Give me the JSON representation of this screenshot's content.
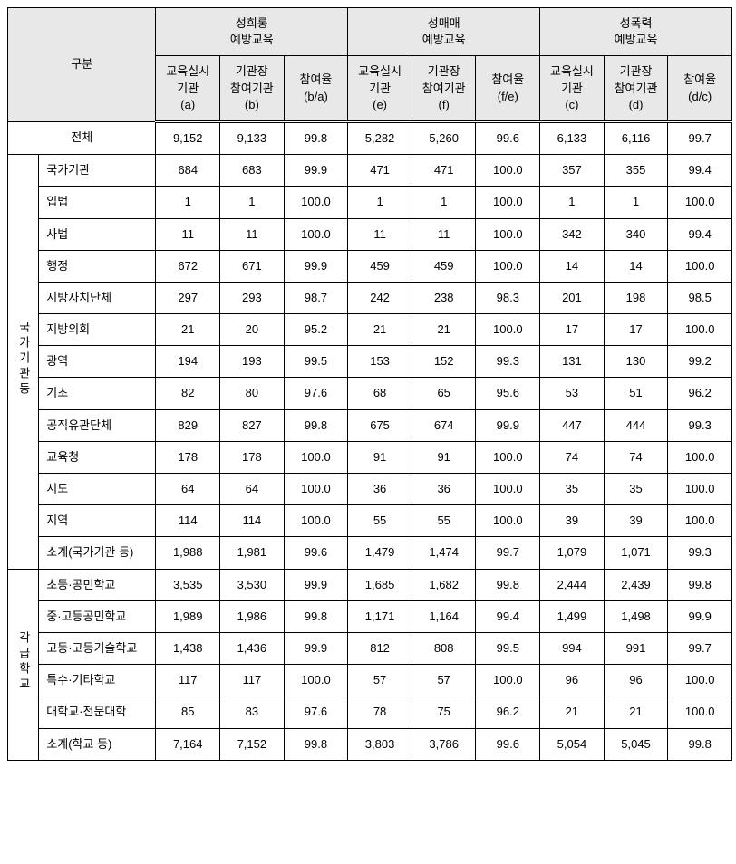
{
  "headers": {
    "category": "구분",
    "groups": [
      {
        "title": "성희롱\n예방교육",
        "cols": [
          {
            "label": "교육실시\n기관\n(a)"
          },
          {
            "label": "기관장\n참여기관\n(b)"
          },
          {
            "label": "참여율\n(b/a)"
          }
        ]
      },
      {
        "title": "성매매\n예방교육",
        "cols": [
          {
            "label": "교육실시\n기관\n(e)"
          },
          {
            "label": "기관장\n참여기관\n(f)"
          },
          {
            "label": "참여율\n(f/e)"
          }
        ]
      },
      {
        "title": "성폭력\n예방교육",
        "cols": [
          {
            "label": "교육실시\n기관\n(c)"
          },
          {
            "label": "기관장\n참여기관\n(d)"
          },
          {
            "label": "참여율\n(d/c)"
          }
        ]
      }
    ]
  },
  "total": {
    "label": "전체",
    "v": [
      "9,152",
      "9,133",
      "99.8",
      "5,282",
      "5,260",
      "99.6",
      "6,133",
      "6,116",
      "99.7"
    ]
  },
  "section1": {
    "label": "국\n가\n기\n관\n등",
    "rows": [
      {
        "label": "국가기관",
        "v": [
          "684",
          "683",
          "99.9",
          "471",
          "471",
          "100.0",
          "357",
          "355",
          "99.4"
        ]
      },
      {
        "label": "입법",
        "v": [
          "1",
          "1",
          "100.0",
          "1",
          "1",
          "100.0",
          "1",
          "1",
          "100.0"
        ]
      },
      {
        "label": "사법",
        "v": [
          "11",
          "11",
          "100.0",
          "11",
          "11",
          "100.0",
          "342",
          "340",
          "99.4"
        ]
      },
      {
        "label": "행정",
        "v": [
          "672",
          "671",
          "99.9",
          "459",
          "459",
          "100.0",
          "14",
          "14",
          "100.0"
        ]
      },
      {
        "label": "지방자치단체",
        "v": [
          "297",
          "293",
          "98.7",
          "242",
          "238",
          "98.3",
          "201",
          "198",
          "98.5"
        ]
      },
      {
        "label": "지방의회",
        "v": [
          "21",
          "20",
          "95.2",
          "21",
          "21",
          "100.0",
          "17",
          "17",
          "100.0"
        ]
      },
      {
        "label": "광역",
        "v": [
          "194",
          "193",
          "99.5",
          "153",
          "152",
          "99.3",
          "131",
          "130",
          "99.2"
        ]
      },
      {
        "label": "기초",
        "v": [
          "82",
          "80",
          "97.6",
          "68",
          "65",
          "95.6",
          "53",
          "51",
          "96.2"
        ]
      },
      {
        "label": "공직유관단체",
        "v": [
          "829",
          "827",
          "99.8",
          "675",
          "674",
          "99.9",
          "447",
          "444",
          "99.3"
        ]
      },
      {
        "label": "교육청",
        "v": [
          "178",
          "178",
          "100.0",
          "91",
          "91",
          "100.0",
          "74",
          "74",
          "100.0"
        ]
      },
      {
        "label": "시도",
        "v": [
          "64",
          "64",
          "100.0",
          "36",
          "36",
          "100.0",
          "35",
          "35",
          "100.0"
        ]
      },
      {
        "label": "지역",
        "v": [
          "114",
          "114",
          "100.0",
          "55",
          "55",
          "100.0",
          "39",
          "39",
          "100.0"
        ]
      },
      {
        "label": "소계(국가기관 등)",
        "v": [
          "1,988",
          "1,981",
          "99.6",
          "1,479",
          "1,474",
          "99.7",
          "1,079",
          "1,071",
          "99.3"
        ]
      }
    ]
  },
  "section2": {
    "label": "각\n급\n학\n교",
    "rows": [
      {
        "label": "초등·공민학교",
        "v": [
          "3,535",
          "3,530",
          "99.9",
          "1,685",
          "1,682",
          "99.8",
          "2,444",
          "2,439",
          "99.8"
        ]
      },
      {
        "label": "중·고등공민학교",
        "v": [
          "1,989",
          "1,986",
          "99.8",
          "1,171",
          "1,164",
          "99.4",
          "1,499",
          "1,498",
          "99.9"
        ]
      },
      {
        "label": "고등·고등기술학교",
        "v": [
          "1,438",
          "1,436",
          "99.9",
          "812",
          "808",
          "99.5",
          "994",
          "991",
          "99.7"
        ]
      },
      {
        "label": "특수·기타학교",
        "v": [
          "117",
          "117",
          "100.0",
          "57",
          "57",
          "100.0",
          "96",
          "96",
          "100.0"
        ]
      },
      {
        "label": "대학교·전문대학",
        "v": [
          "85",
          "83",
          "97.6",
          "78",
          "75",
          "96.2",
          "21",
          "21",
          "100.0"
        ]
      },
      {
        "label": "소계(학교 등)",
        "v": [
          "7,164",
          "7,152",
          "99.8",
          "3,803",
          "3,786",
          "99.6",
          "5,054",
          "5,045",
          "99.8"
        ]
      }
    ]
  }
}
